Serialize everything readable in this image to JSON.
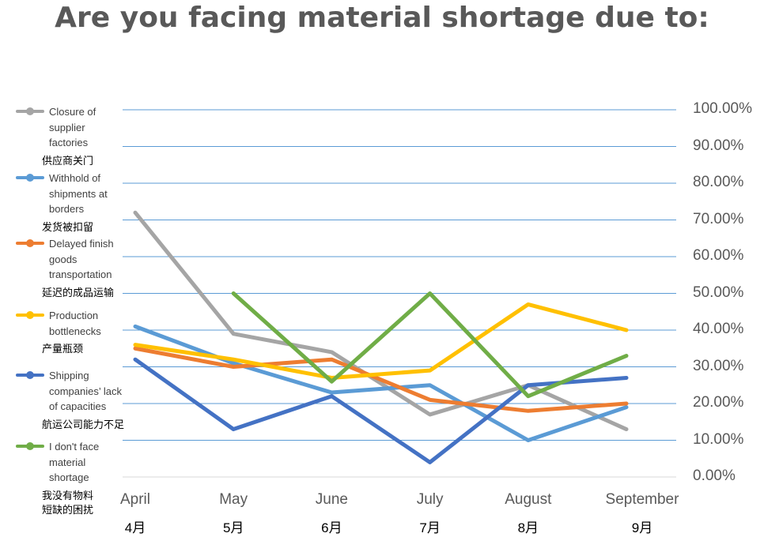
{
  "chart_data": {
    "type": "line",
    "title": "Are you facing material shortage due to:",
    "categories": [
      "April",
      "May",
      "June",
      "July",
      "August",
      "September"
    ],
    "categories_zh": [
      "4月",
      "5月",
      "6月",
      "7月",
      "8月",
      "9月"
    ],
    "ylim": [
      0,
      100
    ],
    "yticks": [
      "0.00%",
      "10.00%",
      "20.00%",
      "30.00%",
      "40.00%",
      "50.00%",
      "60.00%",
      "70.00%",
      "80.00%",
      "90.00%",
      "100.00%"
    ],
    "grid": true,
    "legend_position": "left",
    "series": [
      {
        "name": "Closure of supplier factories",
        "name_zh": "供应商关门",
        "color": "#a5a5a5",
        "values": [
          72,
          39,
          34,
          17,
          25,
          13
        ]
      },
      {
        "name": "Withhold of shipments at borders",
        "name_zh": "发货被扣留",
        "color": "#5b9bd5",
        "values": [
          41,
          31,
          23,
          25,
          10,
          19
        ]
      },
      {
        "name": "Delayed finish goods transportation",
        "name_zh": "延迟的成品运输",
        "color": "#ed7d31",
        "values": [
          35,
          30,
          32,
          21,
          18,
          20
        ]
      },
      {
        "name": "Production bottlenecks",
        "name_zh": "产量瓶颈",
        "color": "#ffc000",
        "values": [
          36,
          32,
          27,
          29,
          47,
          40
        ]
      },
      {
        "name": "Shipping companies’ lack of capacities",
        "name_zh": "航运公司能力不足",
        "color": "#4472c4",
        "values": [
          32,
          13,
          22,
          4,
          25,
          27
        ]
      },
      {
        "name": "I don't face material shortage",
        "name_zh": "我没有物料短缺的困扰",
        "color": "#70ad47",
        "values": [
          null,
          50,
          26,
          50,
          22,
          33
        ]
      }
    ]
  },
  "legend": {
    "items": [
      {
        "lines": [
          "Closure of",
          "supplier",
          "factories"
        ],
        "zh": "供应商关门"
      },
      {
        "lines": [
          "Withhold of",
          "shipments at",
          "borders"
        ],
        "zh": "发货被扣留"
      },
      {
        "lines": [
          "Delayed finish",
          "goods",
          "transportation"
        ],
        "zh": "延迟的成品运输"
      },
      {
        "lines": [
          "Production",
          "bottlenecks"
        ],
        "zh": "产量瓶颈"
      },
      {
        "lines": [
          "Shipping",
          "companies’  lack",
          "of  capacities"
        ],
        "zh": "航运公司能力不足"
      },
      {
        "lines": [
          "I don't face",
          "material",
          "shortage"
        ],
        "zh_lines": [
          "我没有物料",
          "短缺的困扰"
        ]
      }
    ]
  }
}
